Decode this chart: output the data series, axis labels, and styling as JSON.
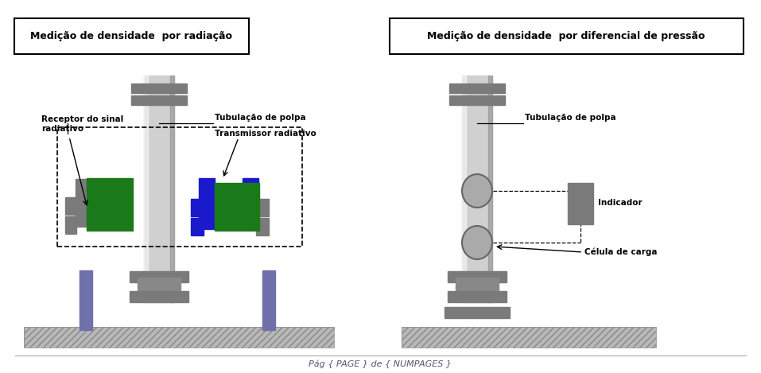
{
  "title_left": "Medição de densidade  por radiação",
  "title_right": "Medição de densidade  por diferencial de pressão",
  "footer": "Pág { PAGE } de { NUMPAGES }",
  "label_receptor": "Receptor do sinal\nradiativo",
  "label_tubulacao_left": "Tubulação de polpa",
  "label_transmissor": "Transmissor radiativo",
  "label_tubulacao_right": "Tubulação de polpa",
  "label_indicador": "Indicador",
  "label_celula": "Célula de carga",
  "gray_light": "#c0c0c0",
  "gray_medium": "#888888",
  "gray_dark": "#606060",
  "gray_tube": "#d0d0d0",
  "gray_flange": "#7a7a7a",
  "green_color": "#1a7a1a",
  "blue_color": "#1a1acc",
  "leg_color": "#7070aa",
  "bg_color": "#ffffff",
  "footer_color": "#555577"
}
